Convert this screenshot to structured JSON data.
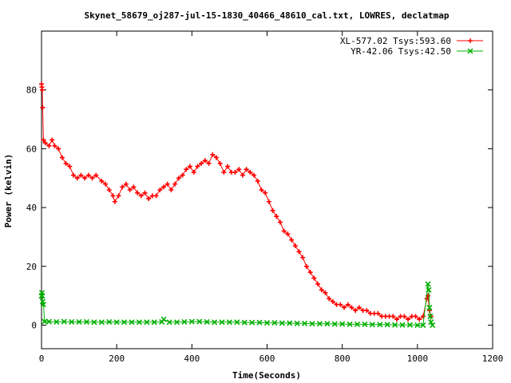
{
  "chart_data": {
    "type": "scatter",
    "title": "Skynet_58679_oj287-jul-15-1830_40466_48610_cal.txt, LOWRES, declatmap",
    "xlabel": "Time(Seconds)",
    "ylabel": "Power (kelvin)",
    "xlim": [
      0,
      1200
    ],
    "ylim": [
      -8,
      100
    ],
    "x_ticks": [
      0,
      200,
      400,
      600,
      800,
      1000,
      1200
    ],
    "y_ticks": [
      0,
      20,
      40,
      60,
      80
    ],
    "legend_position": "top-right",
    "series": [
      {
        "name": "XL-577.02 Tsys:593.60",
        "color": "#ff0000",
        "marker": "plus",
        "points": [
          [
            0,
            82
          ],
          [
            1,
            81
          ],
          [
            2,
            80
          ],
          [
            3,
            74
          ],
          [
            5,
            63
          ],
          [
            10,
            62
          ],
          [
            20,
            61
          ],
          [
            28,
            63
          ],
          [
            35,
            61
          ],
          [
            45,
            60
          ],
          [
            55,
            57
          ],
          [
            65,
            55
          ],
          [
            75,
            54
          ],
          [
            85,
            51
          ],
          [
            95,
            50
          ],
          [
            105,
            51
          ],
          [
            115,
            50
          ],
          [
            125,
            51
          ],
          [
            135,
            50
          ],
          [
            145,
            51
          ],
          [
            160,
            49
          ],
          [
            170,
            48
          ],
          [
            180,
            46
          ],
          [
            190,
            44
          ],
          [
            195,
            42
          ],
          [
            205,
            44
          ],
          [
            215,
            47
          ],
          [
            225,
            48
          ],
          [
            235,
            46
          ],
          [
            245,
            47
          ],
          [
            255,
            45
          ],
          [
            265,
            44
          ],
          [
            275,
            45
          ],
          [
            285,
            43
          ],
          [
            295,
            44
          ],
          [
            305,
            44
          ],
          [
            315,
            46
          ],
          [
            325,
            47
          ],
          [
            335,
            48
          ],
          [
            345,
            46
          ],
          [
            355,
            48
          ],
          [
            365,
            50
          ],
          [
            375,
            51
          ],
          [
            385,
            53
          ],
          [
            395,
            54
          ],
          [
            405,
            52
          ],
          [
            415,
            54
          ],
          [
            425,
            55
          ],
          [
            435,
            56
          ],
          [
            445,
            55
          ],
          [
            455,
            58
          ],
          [
            465,
            57
          ],
          [
            475,
            55
          ],
          [
            485,
            52
          ],
          [
            495,
            54
          ],
          [
            505,
            52
          ],
          [
            515,
            52
          ],
          [
            525,
            53
          ],
          [
            535,
            51
          ],
          [
            545,
            53
          ],
          [
            555,
            52
          ],
          [
            565,
            51
          ],
          [
            575,
            49
          ],
          [
            585,
            46
          ],
          [
            595,
            45
          ],
          [
            605,
            42
          ],
          [
            615,
            39
          ],
          [
            625,
            37
          ],
          [
            635,
            35
          ],
          [
            645,
            32
          ],
          [
            655,
            31
          ],
          [
            665,
            29
          ],
          [
            675,
            27
          ],
          [
            685,
            25
          ],
          [
            695,
            23
          ],
          [
            705,
            20
          ],
          [
            715,
            18
          ],
          [
            725,
            16
          ],
          [
            735,
            14
          ],
          [
            745,
            12
          ],
          [
            755,
            11
          ],
          [
            765,
            9
          ],
          [
            775,
            8
          ],
          [
            785,
            7
          ],
          [
            795,
            7
          ],
          [
            805,
            6
          ],
          [
            815,
            7
          ],
          [
            825,
            6
          ],
          [
            835,
            5
          ],
          [
            845,
            6
          ],
          [
            855,
            5
          ],
          [
            865,
            5
          ],
          [
            875,
            4
          ],
          [
            885,
            4
          ],
          [
            895,
            4
          ],
          [
            905,
            3
          ],
          [
            915,
            3
          ],
          [
            925,
            3
          ],
          [
            935,
            3
          ],
          [
            945,
            2
          ],
          [
            955,
            3
          ],
          [
            965,
            3
          ],
          [
            975,
            2
          ],
          [
            985,
            3
          ],
          [
            995,
            3
          ],
          [
            1005,
            2
          ],
          [
            1015,
            3
          ],
          [
            1025,
            9
          ],
          [
            1028,
            10
          ],
          [
            1032,
            5
          ],
          [
            1036,
            3
          ]
        ]
      },
      {
        "name": "YR-42.06 Tsys:42.50",
        "color": "#00b000",
        "marker": "cross",
        "points": [
          [
            0,
            10
          ],
          [
            1,
            11
          ],
          [
            2,
            10
          ],
          [
            3,
            8
          ],
          [
            5,
            7
          ],
          [
            8,
            1.2
          ],
          [
            20,
            1.2
          ],
          [
            40,
            1.1
          ],
          [
            60,
            1.2
          ],
          [
            80,
            1.1
          ],
          [
            100,
            1.1
          ],
          [
            120,
            1.1
          ],
          [
            140,
            1.0
          ],
          [
            160,
            1.0
          ],
          [
            180,
            1.1
          ],
          [
            200,
            1.0
          ],
          [
            220,
            1.0
          ],
          [
            240,
            1.0
          ],
          [
            260,
            1.0
          ],
          [
            280,
            1.0
          ],
          [
            300,
            1.0
          ],
          [
            320,
            1.1
          ],
          [
            325,
            2
          ],
          [
            340,
            1.0
          ],
          [
            360,
            1.0
          ],
          [
            380,
            1.1
          ],
          [
            400,
            1.2
          ],
          [
            420,
            1.2
          ],
          [
            440,
            1.1
          ],
          [
            460,
            1.0
          ],
          [
            480,
            1.0
          ],
          [
            500,
            1.0
          ],
          [
            520,
            1.0
          ],
          [
            540,
            0.9
          ],
          [
            560,
            0.9
          ],
          [
            580,
            0.9
          ],
          [
            600,
            0.8
          ],
          [
            620,
            0.8
          ],
          [
            640,
            0.7
          ],
          [
            660,
            0.7
          ],
          [
            680,
            0.6
          ],
          [
            700,
            0.6
          ],
          [
            720,
            0.5
          ],
          [
            740,
            0.5
          ],
          [
            760,
            0.5
          ],
          [
            780,
            0.4
          ],
          [
            800,
            0.4
          ],
          [
            820,
            0.3
          ],
          [
            840,
            0.3
          ],
          [
            860,
            0.3
          ],
          [
            880,
            0.2
          ],
          [
            900,
            0.2
          ],
          [
            920,
            0.2
          ],
          [
            940,
            0.1
          ],
          [
            960,
            0.1
          ],
          [
            980,
            0.1
          ],
          [
            1000,
            0.0
          ],
          [
            1015,
            0.0
          ],
          [
            1028,
            14
          ],
          [
            1030,
            12
          ],
          [
            1032,
            6
          ],
          [
            1034,
            3
          ],
          [
            1036,
            1
          ],
          [
            1040,
            0
          ]
        ]
      }
    ]
  }
}
